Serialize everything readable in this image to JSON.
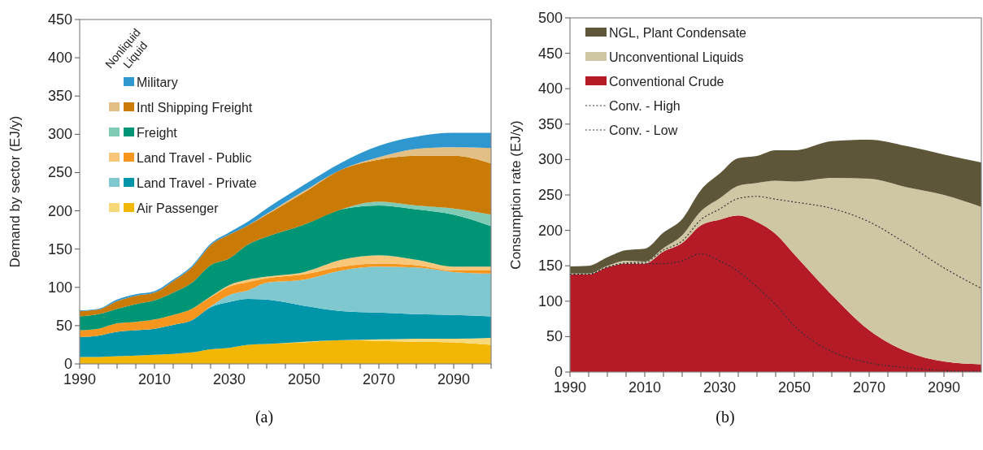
{
  "chart_data": [
    {
      "type": "area",
      "stacked": true,
      "ylabel": "Demand by sector (EJ/y)",
      "x": [
        1990,
        1995,
        2000,
        2005,
        2010,
        2015,
        2020,
        2025,
        2030,
        2035,
        2040,
        2050,
        2060,
        2070,
        2080,
        2090,
        2100
      ],
      "xlim": [
        1990,
        2100
      ],
      "xticks": [
        1990,
        {
          "value": 1995,
          "label": null
        },
        {
          "value": 2000,
          "label": null
        },
        {
          "value": 2005,
          "label": null
        },
        2010,
        {
          "value": 2015,
          "label": null
        },
        {
          "value": 2020,
          "label": null
        },
        {
          "value": 2025,
          "label": null
        },
        2030,
        {
          "value": 2035,
          "label": null
        },
        {
          "value": 2040,
          "label": null
        },
        {
          "value": 2045,
          "label": null
        },
        2050,
        {
          "value": 2055,
          "label": null
        },
        {
          "value": 2060,
          "label": null
        },
        {
          "value": 2065,
          "label": null
        },
        2070,
        {
          "value": 2075,
          "label": null
        },
        {
          "value": 2080,
          "label": null
        },
        {
          "value": 2085,
          "label": null
        },
        2090,
        {
          "value": 2095,
          "label": null
        },
        {
          "value": 2100,
          "label": null
        }
      ],
      "ylim": [
        0,
        450
      ],
      "yticks": [
        0,
        50,
        100,
        150,
        200,
        250,
        300,
        350,
        400,
        450
      ],
      "grid": false,
      "legend": "top left",
      "annotations": [
        "Nonliquid",
        "Liquid",
        "(a)"
      ],
      "series": [
        {
          "name": "Air Passenger",
          "color": "#f2b705",
          "values": [
            9,
            9,
            10,
            11,
            12,
            13,
            15,
            19,
            21,
            25,
            26,
            28,
            31,
            30,
            29,
            28,
            25
          ]
        },
        {
          "color": "#f7d97a",
          "values": [
            0,
            0,
            0,
            0,
            0,
            0,
            0,
            0,
            0,
            0,
            0,
            1,
            0,
            2,
            4,
            5,
            9
          ]
        },
        {
          "name": "Land Travel - Private",
          "color": "#0095a8",
          "values": [
            26,
            28,
            32,
            33,
            34,
            38,
            42,
            55,
            60,
            60,
            58,
            47,
            38,
            35,
            32,
            31,
            28
          ]
        },
        {
          "color": "#7fc8d0",
          "values": [
            0,
            0,
            0,
            0,
            0,
            0,
            0,
            1,
            9,
            11,
            22,
            34,
            53,
            60,
            61,
            56,
            56
          ]
        },
        {
          "name": "Land Travel - Public",
          "color": "#f6961e",
          "values": [
            9,
            9,
            11,
            11,
            12,
            13,
            15,
            12,
            11,
            11,
            6,
            7,
            5,
            4,
            3,
            2,
            4
          ]
        },
        {
          "color": "#f9c77a",
          "values": [
            0,
            0,
            0,
            0,
            0,
            0,
            0,
            1,
            2,
            3,
            2,
            3,
            9,
            11,
            7,
            5,
            5
          ]
        },
        {
          "name": "Freight",
          "color": "#009575",
          "values": [
            18,
            19,
            19,
            23,
            25,
            29,
            34,
            41,
            35,
            46,
            52,
            62,
            66,
            65,
            66,
            68,
            53
          ]
        },
        {
          "color": "#7fcbb5",
          "values": [
            0,
            0,
            0,
            0,
            0,
            0,
            0,
            0,
            0,
            0,
            0,
            0,
            0,
            5,
            5,
            8,
            15
          ]
        },
        {
          "name": "Intl Shipping Freight",
          "color": "#c97b05",
          "values": [
            7,
            6,
            10,
            11,
            10,
            15,
            20,
            26,
            31,
            25,
            29,
            42,
            52,
            55,
            65,
            69,
            67
          ]
        },
        {
          "color": "#e2bf85",
          "values": [
            0,
            0,
            0,
            0,
            0,
            0,
            0,
            0,
            0,
            0,
            1,
            2,
            0,
            3,
            9,
            11,
            20
          ]
        },
        {
          "name": "Military",
          "color": "#2e97d0",
          "values": [
            1,
            1,
            2,
            2,
            2,
            2,
            2,
            2,
            3,
            5,
            7,
            8,
            9,
            15,
            16,
            19,
            20
          ]
        }
      ]
    },
    {
      "type": "area",
      "stacked": true,
      "ylabel": "Consumption rate (EJ/y)",
      "x": [
        1990,
        1995,
        2000,
        2005,
        2010,
        2015,
        2020,
        2025,
        2030,
        2035,
        2040,
        2045,
        2050,
        2060,
        2070,
        2080,
        2090,
        2100
      ],
      "xlim": [
        1990,
        2100
      ],
      "xticks": [
        1990,
        {
          "value": 1995,
          "label": null
        },
        {
          "value": 2000,
          "label": null
        },
        {
          "value": 2005,
          "label": null
        },
        2010,
        {
          "value": 2015,
          "label": null
        },
        {
          "value": 2020,
          "label": null
        },
        {
          "value": 2025,
          "label": null
        },
        2030,
        {
          "value": 2035,
          "label": null
        },
        {
          "value": 2040,
          "label": null
        },
        {
          "value": 2045,
          "label": null
        },
        2050,
        {
          "value": 2055,
          "label": null
        },
        {
          "value": 2060,
          "label": null
        },
        {
          "value": 2065,
          "label": null
        },
        2070,
        {
          "value": 2075,
          "label": null
        },
        {
          "value": 2080,
          "label": null
        },
        {
          "value": 2085,
          "label": null
        },
        2090,
        {
          "value": 2095,
          "label": null
        }
      ],
      "ylim": [
        0,
        500
      ],
      "yticks": [
        0,
        50,
        100,
        150,
        200,
        250,
        300,
        350,
        400,
        450,
        500
      ],
      "grid": false,
      "legend": "top left",
      "line_style": "dotted",
      "annotations": [
        "(b)"
      ],
      "series": [
        {
          "name": "Conventional Crude",
          "color": "#b51a27",
          "values": [
            138,
            138,
            148,
            153,
            153,
            170,
            182,
            207,
            215,
            221,
            212,
            195,
            166,
            109,
            59,
            29,
            15,
            11
          ]
        },
        {
          "name": "Unconventional Liquids",
          "color": "#cfc7a3",
          "values": [
            1,
            1,
            2,
            4,
            3,
            5,
            11,
            20,
            30,
            42,
            55,
            75,
            103,
            165,
            214,
            232,
            235,
            222
          ]
        },
        {
          "name": "NGL, Plant Condensate",
          "color": "#5e5638",
          "values": [
            10,
            11,
            12,
            15,
            18,
            22,
            23,
            30,
            35,
            39,
            38,
            43,
            44,
            52,
            55,
            58,
            57,
            63
          ]
        },
        {
          "name": "Conv. - High",
          "type": "line",
          "color": "#333333",
          "values": [
            138,
            138,
            148,
            154,
            155,
            172,
            185,
            215,
            230,
            245,
            248,
            244,
            240,
            231,
            212,
            181,
            147,
            118
          ]
        },
        {
          "name": "Conv. - Low",
          "type": "line",
          "color": "#333333",
          "values": [
            138,
            138,
            148,
            153,
            153,
            153,
            157,
            167,
            157,
            142,
            120,
            95,
            65,
            29,
            13,
            6,
            2,
            1
          ]
        }
      ]
    }
  ]
}
